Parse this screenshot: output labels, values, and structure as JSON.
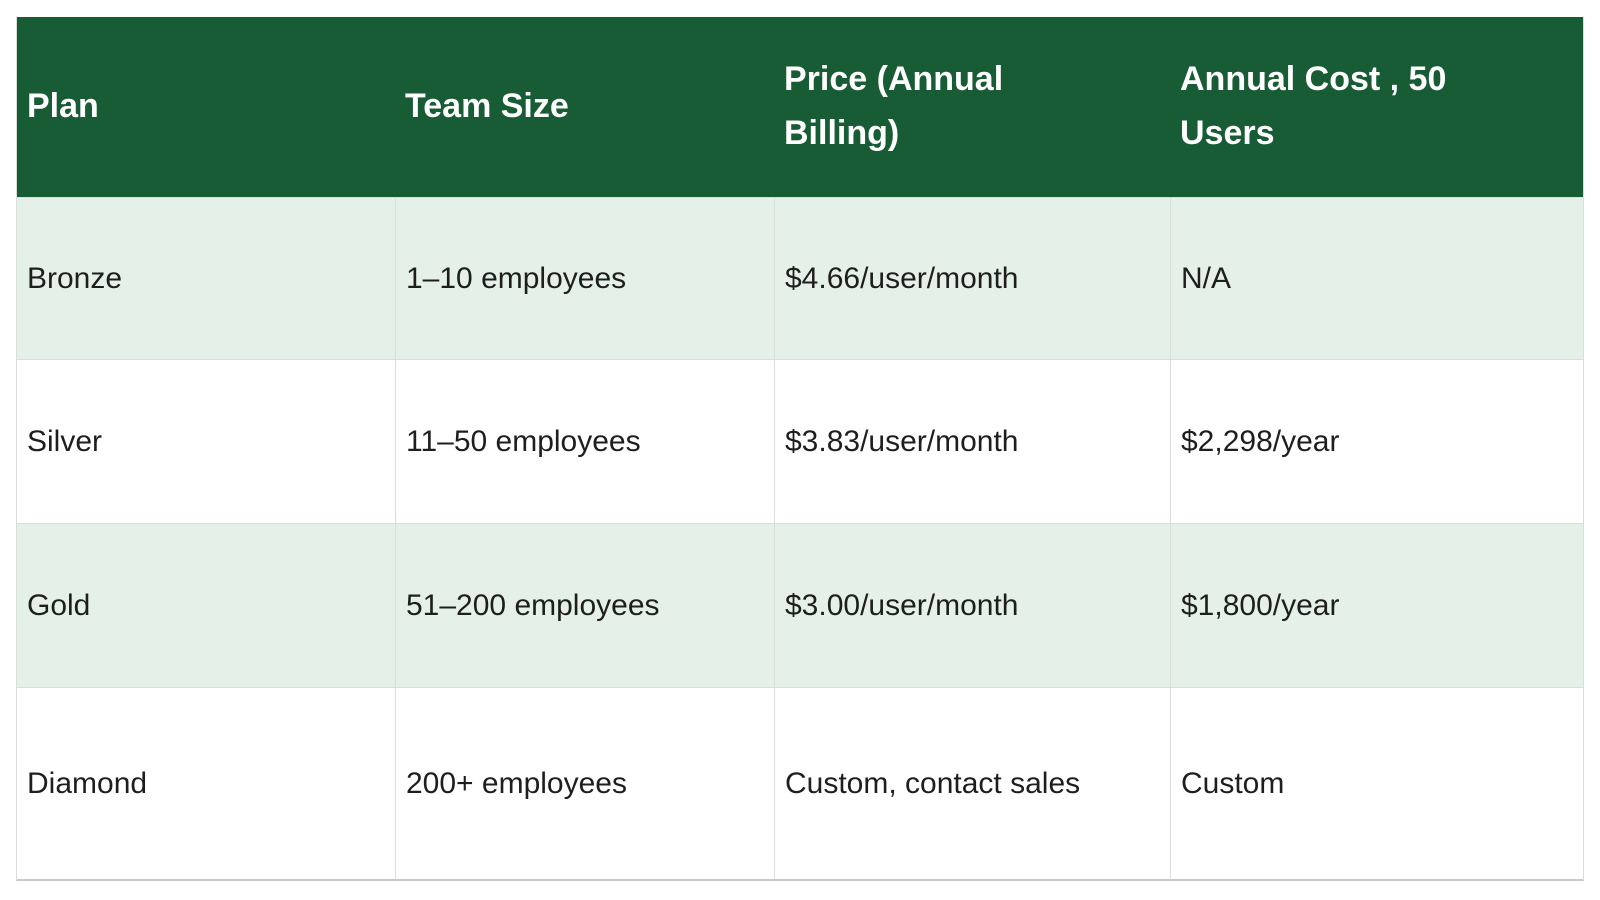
{
  "table": {
    "columns": [
      {
        "key": "plan",
        "label": "Plan"
      },
      {
        "key": "team_size",
        "label": "Team Size"
      },
      {
        "key": "price",
        "label": "Price (Annual Billing)"
      },
      {
        "key": "annual_cost",
        "label": "Annual Cost , 50 Users"
      }
    ],
    "rows": [
      {
        "plan": "Bronze",
        "team_size": "1–10 employees",
        "price": "$4.66/user/month",
        "annual_cost": "N/A"
      },
      {
        "plan": "Silver",
        "team_size": "11–50 employees",
        "price": "$3.83/user/month",
        "annual_cost": "$2,298/year"
      },
      {
        "plan": "Gold",
        "team_size": "51–200 employees",
        "price": "$3.00/user/month",
        "annual_cost": "$1,800/year"
      },
      {
        "plan": "Diamond",
        "team_size": "200+ employees",
        "price": "Custom, contact sales",
        "annual_cost": "Custom"
      }
    ]
  },
  "colors": {
    "header_bg": "#185c35",
    "header_text": "#ffffff",
    "row_alt_bg": "#e5f1e8",
    "row_bg": "#ffffff",
    "body_text": "#1e1e1e",
    "border": "#dadeda",
    "border_strong": "#c7cbc8"
  }
}
